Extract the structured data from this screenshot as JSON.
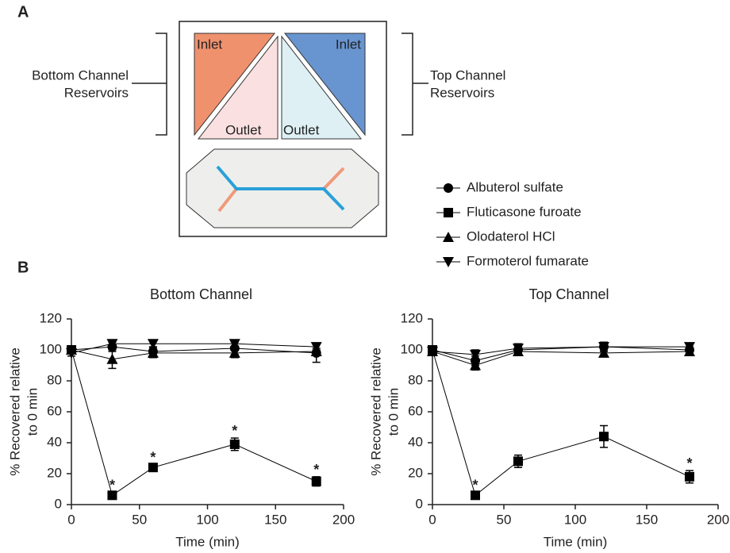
{
  "panels": [
    "A",
    "B"
  ],
  "diagram": {
    "left_bracket": [
      "Bottom Channel",
      "Reservoirs"
    ],
    "right_bracket": [
      "Top Channel",
      "Reservoirs"
    ],
    "reservoirs": [
      "Inlet",
      "Outlet",
      "Outlet",
      "Inlet"
    ]
  },
  "chart_data": [
    {
      "type": "line",
      "title": "Bottom Channel",
      "xlabel": "Time (min)",
      "ylabel": [
        "% Recovered relative",
        "to 0 min"
      ],
      "x": [
        0,
        30,
        60,
        120,
        180
      ],
      "xlim": [
        0,
        200
      ],
      "xticks": [
        0,
        50,
        100,
        150,
        200
      ],
      "ylim": [
        0,
        120
      ],
      "yticks": [
        0,
        20,
        40,
        60,
        80,
        100,
        120
      ],
      "series": [
        {
          "name": "Albuterol sulfate",
          "marker": "circle",
          "color": "#000000",
          "values": [
            100,
            102,
            99,
            101,
            98
          ],
          "errors": [
            2,
            3,
            3,
            4,
            6
          ]
        },
        {
          "name": "Fluticasone furoate",
          "marker": "square",
          "color": "#000000",
          "values": [
            100,
            6,
            24,
            39,
            15
          ],
          "errors": [
            2,
            1.5,
            2,
            4,
            3
          ]
        },
        {
          "name": "Olodaterol HCl",
          "marker": "triangle",
          "color": "#000000",
          "values": [
            100,
            94,
            98,
            98,
            99
          ],
          "errors": [
            2,
            6,
            3,
            3,
            2
          ]
        },
        {
          "name": "Formoterol fumarate",
          "marker": "triangle-down",
          "color": "#000000",
          "values": [
            98,
            104,
            104,
            104,
            102
          ],
          "errors": [
            2,
            2,
            2,
            2,
            2
          ]
        }
      ],
      "annotations": [
        {
          "text": "*",
          "x": 30,
          "y": 12
        },
        {
          "text": "*",
          "x": 60,
          "y": 30
        },
        {
          "text": "*",
          "x": 120,
          "y": 47
        },
        {
          "text": "*",
          "x": 180,
          "y": 22
        }
      ]
    },
    {
      "type": "line",
      "title": "Top Channel",
      "xlabel": "Time (min)",
      "ylabel": [
        "% Recovered relative",
        "to 0 min"
      ],
      "x": [
        0,
        30,
        60,
        120,
        180
      ],
      "xlim": [
        0,
        200
      ],
      "xticks": [
        0,
        50,
        100,
        150,
        200
      ],
      "ylim": [
        0,
        120
      ],
      "yticks": [
        0,
        20,
        40,
        60,
        80,
        100,
        120
      ],
      "series": [
        {
          "marker": "circle",
          "color": "#000000",
          "values": [
            100,
            93,
            100,
            102,
            100
          ],
          "errors": [
            2,
            3,
            3,
            3,
            2
          ]
        },
        {
          "marker": "square",
          "color": "#000000",
          "values": [
            100,
            6,
            28,
            44,
            18
          ],
          "errors": [
            2,
            1.5,
            4,
            7,
            4
          ]
        },
        {
          "marker": "triangle",
          "color": "#000000",
          "values": [
            99,
            90,
            99,
            98,
            99
          ],
          "errors": [
            2,
            3,
            2,
            2,
            2
          ]
        },
        {
          "marker": "triangle-down",
          "color": "#000000",
          "values": [
            99,
            97,
            101,
            102,
            102
          ],
          "errors": [
            2,
            3,
            3,
            3,
            2
          ]
        }
      ],
      "annotations": [
        {
          "text": "*",
          "x": 30,
          "y": 12
        },
        {
          "text": "*",
          "x": 180,
          "y": 26
        }
      ]
    }
  ]
}
